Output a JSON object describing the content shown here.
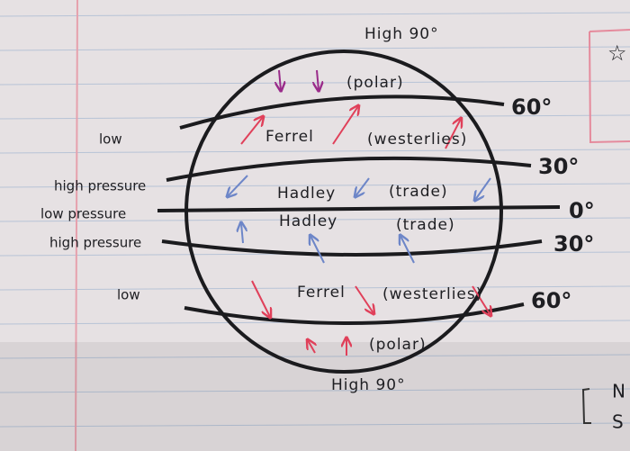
{
  "top": {
    "label": "High 90°"
  },
  "cells": [
    {
      "name": "(polar)"
    },
    {
      "name": "Ferrel",
      "winds": "(westerlies)"
    },
    {
      "name": "Hadley",
      "winds": "(trade)"
    },
    {
      "name": "Hadley",
      "winds": "(trade)"
    },
    {
      "name": "Ferrel",
      "winds": "(westerlies)"
    },
    {
      "name": "(polar)"
    }
  ],
  "bottom": {
    "label": "High 90°"
  },
  "latitudes": [
    "60°",
    "30°",
    "0°",
    "30°",
    "60°"
  ],
  "pressure_labels": [
    "low",
    "high pressure",
    "low pressure",
    "high pressure",
    "low"
  ],
  "note": {
    "symbol": "☆",
    "lines": [
      "N",
      "S"
    ]
  }
}
